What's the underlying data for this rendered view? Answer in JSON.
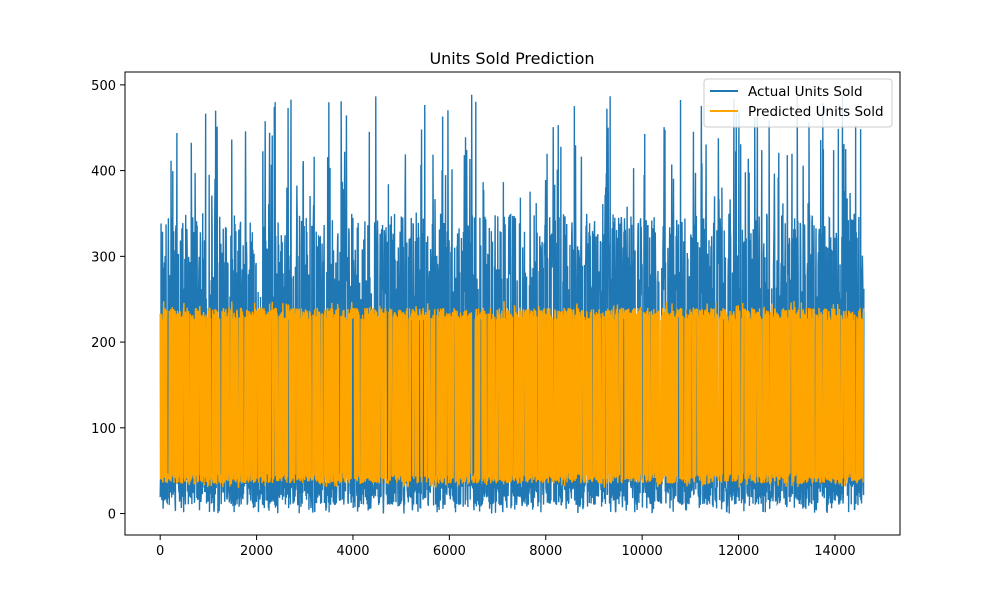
{
  "chart_data": {
    "type": "line",
    "title": "Units Sold Prediction",
    "xlabel": "",
    "ylabel": "",
    "xlim": [
      -730,
      15350
    ],
    "ylim": [
      -25,
      515
    ],
    "x_ticks": [
      0,
      2000,
      4000,
      6000,
      8000,
      10000,
      12000,
      14000
    ],
    "y_ticks": [
      0,
      100,
      200,
      300,
      400,
      500
    ],
    "x_ticklabels": [
      "0",
      "2000",
      "4000",
      "6000",
      "8000",
      "10000",
      "12000",
      "14000"
    ],
    "y_ticklabels": [
      "0",
      "100",
      "200",
      "300",
      "400",
      "500"
    ],
    "grid": false,
    "legend_position": "top-right",
    "n_points": 14600,
    "series": [
      {
        "name": "Actual Units Sold",
        "color": "#1f77b4",
        "typical_range": [
          10,
          350
        ],
        "observed_min": 0,
        "observed_max": 489,
        "x_start": 0,
        "x_end": 14600
      },
      {
        "name": "Predicted Units Sold",
        "color": "#ffa500",
        "typical_range": [
          35,
          240
        ],
        "observed_min": 30,
        "observed_max": 248,
        "x_start": 0,
        "x_end": 14600
      }
    ]
  }
}
